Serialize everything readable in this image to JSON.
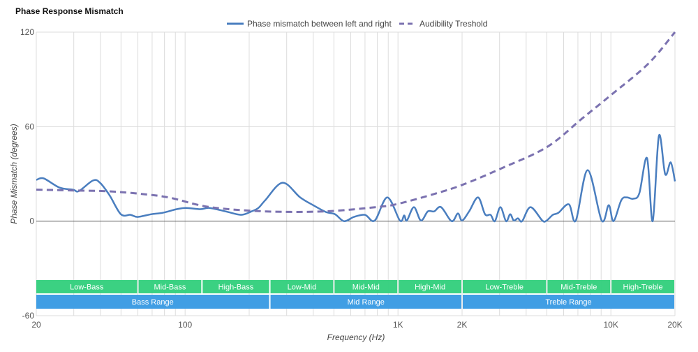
{
  "chart_data": {
    "type": "line",
    "title": "Phase Response Mismatch",
    "xlabel": "Frequency (Hz)",
    "ylabel": "Phase Mismatch (degrees)",
    "xscale": "log",
    "xlim": [
      20,
      20000
    ],
    "ylim": [
      -60,
      120
    ],
    "grid": true,
    "legend_position": "top-center",
    "x_ticks": [
      {
        "v": 20,
        "label": "20"
      },
      {
        "v": 100,
        "label": "100"
      },
      {
        "v": 1000,
        "label": "1K"
      },
      {
        "v": 2000,
        "label": "2K"
      },
      {
        "v": 10000,
        "label": "10K"
      },
      {
        "v": 20000,
        "label": "20K"
      }
    ],
    "y_ticks": [
      {
        "v": 120,
        "label": "120"
      },
      {
        "v": 60,
        "label": "60"
      },
      {
        "v": 0,
        "label": "0"
      },
      {
        "v": -60,
        "label": "-60"
      }
    ],
    "series": [
      {
        "name": "Phase mismatch between left and right",
        "color": "#4a7ebf",
        "style": "solid",
        "points": [
          [
            20,
            26.2
          ],
          [
            21.7,
            27.1
          ],
          [
            25.7,
            21.3
          ],
          [
            29.8,
            20
          ],
          [
            31.7,
            19.1
          ],
          [
            36.9,
            25.8
          ],
          [
            39.8,
            24.4
          ],
          [
            44.2,
            16.4
          ],
          [
            49.9,
            4.4
          ],
          [
            55.4,
            4
          ],
          [
            59.8,
            2.7
          ],
          [
            69.5,
            4.4
          ],
          [
            78.4,
            5.3
          ],
          [
            91.2,
            7.6
          ],
          [
            101,
            8.4
          ],
          [
            118,
            7.6
          ],
          [
            130,
            8.4
          ],
          [
            155,
            6.2
          ],
          [
            183,
            4
          ],
          [
            205,
            6.2
          ],
          [
            221,
            8.4
          ],
          [
            238,
            13.3
          ],
          [
            287,
            24.4
          ],
          [
            347,
            15.1
          ],
          [
            404,
            9.8
          ],
          [
            459,
            5.8
          ],
          [
            506,
            4.4
          ],
          [
            558,
            0
          ],
          [
            621,
            2.7
          ],
          [
            700,
            4
          ],
          [
            778,
            0.4
          ],
          [
            891,
            15.1
          ],
          [
            1021,
            0.4
          ],
          [
            1069,
            3.6
          ],
          [
            1101,
            0.4
          ],
          [
            1188,
            8.9
          ],
          [
            1281,
            0.4
          ],
          [
            1381,
            6.2
          ],
          [
            1478,
            6.2
          ],
          [
            1594,
            8.9
          ],
          [
            1787,
            0
          ],
          [
            1911,
            4.9
          ],
          [
            2000,
            0.4
          ],
          [
            2158,
            6.2
          ],
          [
            2378,
            15.1
          ],
          [
            2564,
            4.4
          ],
          [
            2724,
            4
          ],
          [
            2851,
            0
          ],
          [
            3027,
            8.9
          ],
          [
            3218,
            0
          ],
          [
            3365,
            4.4
          ],
          [
            3497,
            0.4
          ],
          [
            3658,
            1.8
          ],
          [
            3829,
            0
          ],
          [
            4191,
            8.9
          ],
          [
            4765,
            0.4
          ],
          [
            4988,
            0.4
          ],
          [
            5336,
            4
          ],
          [
            5667,
            5.3
          ],
          [
            6350,
            10.7
          ],
          [
            6844,
            0.4
          ],
          [
            7783,
            32.4
          ],
          [
            9054,
            0.4
          ],
          [
            9768,
            10.2
          ],
          [
            10283,
            0
          ],
          [
            11190,
            13.3
          ],
          [
            11880,
            15.1
          ],
          [
            12720,
            14.2
          ],
          [
            13610,
            17.8
          ],
          [
            14790,
            40
          ],
          [
            15720,
            0
          ],
          [
            16810,
            54.2
          ],
          [
            17990,
            29.8
          ],
          [
            19100,
            37.3
          ],
          [
            20000,
            25.3
          ]
        ]
      },
      {
        "name": "Audibility Treshold",
        "color": "#7b72b0",
        "style": "dashed",
        "points": [
          [
            20,
            20
          ],
          [
            30,
            19.5
          ],
          [
            43,
            19
          ],
          [
            60,
            17.5
          ],
          [
            84,
            15
          ],
          [
            130,
            9
          ],
          [
            238,
            6.2
          ],
          [
            450,
            6.2
          ],
          [
            800,
            9
          ],
          [
            1000,
            11
          ],
          [
            1500,
            17.5
          ],
          [
            2000,
            23
          ],
          [
            3000,
            33
          ],
          [
            5000,
            47
          ],
          [
            7300,
            65
          ],
          [
            10000,
            80
          ],
          [
            15000,
            100
          ],
          [
            20000,
            120
          ]
        ]
      }
    ],
    "bands": {
      "color": "#35cf7e",
      "items": [
        {
          "label": "Low-Bass",
          "from": 20,
          "to": 60
        },
        {
          "label": "Mid-Bass",
          "from": 60,
          "to": 120
        },
        {
          "label": "High-Bass",
          "from": 120,
          "to": 250
        },
        {
          "label": "Low-Mid",
          "from": 250,
          "to": 500
        },
        {
          "label": "Mid-Mid",
          "from": 500,
          "to": 1000
        },
        {
          "label": "High-Mid",
          "from": 1000,
          "to": 2000
        },
        {
          "label": "Low-Treble",
          "from": 2000,
          "to": 5000
        },
        {
          "label": "Mid-Treble",
          "from": 5000,
          "to": 10000
        },
        {
          "label": "High-Treble",
          "from": 10000,
          "to": 20000
        }
      ]
    },
    "ranges": {
      "color": "#3a9be3",
      "items": [
        {
          "label": "Bass Range",
          "from": 20,
          "to": 250
        },
        {
          "label": "Mid Range",
          "from": 250,
          "to": 2000
        },
        {
          "label": "Treble Range",
          "from": 2000,
          "to": 20000
        }
      ]
    }
  }
}
